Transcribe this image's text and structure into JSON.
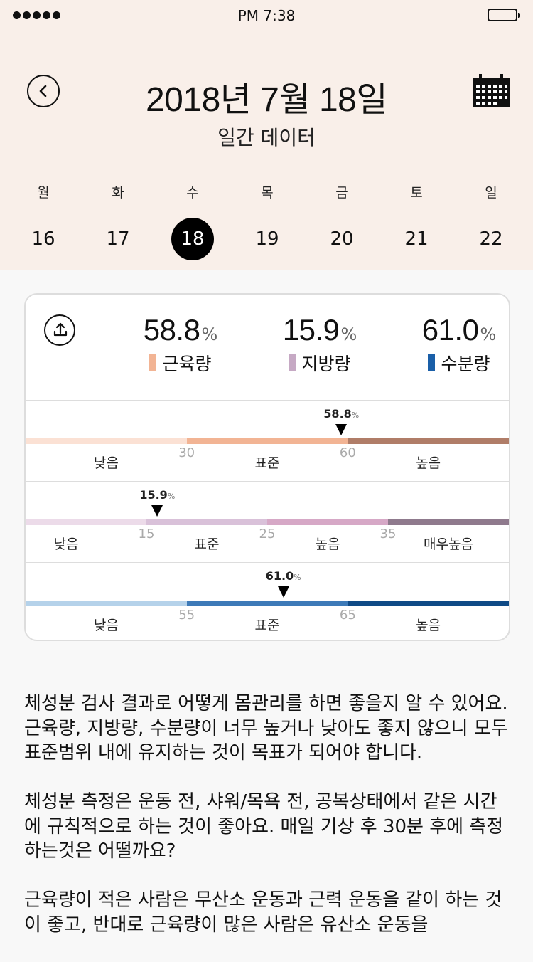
{
  "status_bar": {
    "time": "PM 7:38"
  },
  "header": {
    "title": "2018년 7월 18일",
    "subtitle": "일간 데이터"
  },
  "week": [
    {
      "name": "월",
      "num": "16"
    },
    {
      "name": "화",
      "num": "17"
    },
    {
      "name": "수",
      "num": "18",
      "selected": true
    },
    {
      "name": "목",
      "num": "19"
    },
    {
      "name": "금",
      "num": "20"
    },
    {
      "name": "토",
      "num": "21"
    },
    {
      "name": "일",
      "num": "22"
    }
  ],
  "summary": {
    "unit": "%",
    "stats": [
      {
        "value": "58.8",
        "label": "근육량",
        "color": "#f2b494"
      },
      {
        "value": "15.9",
        "label": "지방량",
        "color": "#c6a9c4"
      },
      {
        "value": "61.0",
        "label": "수분량",
        "color": "#1a5fa8"
      }
    ]
  },
  "gauges": [
    {
      "value": "58.8",
      "unit": "%",
      "value_num": 58.8,
      "ticks": [
        "30",
        "60"
      ],
      "zones": [
        "낮음",
        "표준",
        "높음"
      ],
      "colors": [
        "#fbe1d4",
        "#f2b494",
        "#b07d68"
      ]
    },
    {
      "value": "15.9",
      "unit": "%",
      "value_num": 15.9,
      "ticks": [
        "15",
        "25",
        "35"
      ],
      "zones": [
        "낮음",
        "표준",
        "높음",
        "매우높음"
      ],
      "colors": [
        "#ecdbe9",
        "#d9c1d9",
        "#d6a8c6",
        "#8f7a8d"
      ]
    },
    {
      "value": "61.0",
      "unit": "%",
      "value_num": 61.0,
      "ticks": [
        "55",
        "65"
      ],
      "zones": [
        "낮음",
        "표준",
        "높음"
      ],
      "colors": [
        "#b5d2ea",
        "#3d7ab8",
        "#0f4a86"
      ]
    }
  ],
  "description": [
    "체성분 검사 결과로 어떻게 몸관리를 하면 좋을지 알 수 있어요.근육량, 지방량, 수분량이 너무 높거나 낮아도 좋지 않으니 모두 표준범위 내에 유지하는 것이 목표가 되어야 합니다.",
    "체성분 측정은 운동 전, 샤워/목욕 전, 공복상태에서 같은 시간에 규칙적으로 하는 것이 좋아요. 매일 기상 후 30분 후에 측정하는것은 어떨까요?",
    "근육량이 적은 사람은 무산소 운동과 근력 운동을 같이 하는 것이 좋고, 반대로 근육량이 많은 사람은 유산소 운동을"
  ]
}
